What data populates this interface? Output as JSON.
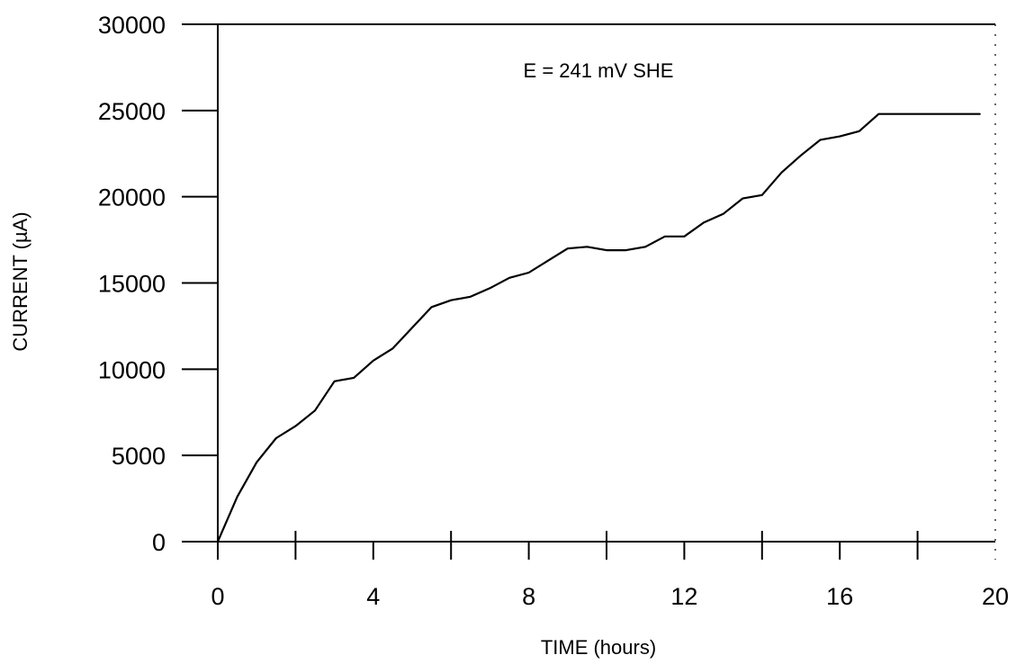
{
  "chart_data": {
    "type": "line",
    "title": "",
    "xlabel": "TIME (hours)",
    "ylabel": "CURRENT (µA)",
    "annotation": "E = 241 mV SHE",
    "xlim": [
      0,
      20
    ],
    "ylim": [
      0,
      30000
    ],
    "x_ticks": [
      0,
      4,
      8,
      12,
      16,
      20
    ],
    "x_tick_labels": [
      "0",
      "4",
      "8",
      "12",
      "16",
      "20"
    ],
    "x_minor_ticks": [
      2,
      6,
      10,
      14,
      18
    ],
    "y_ticks": [
      0,
      5000,
      10000,
      15000,
      20000,
      25000,
      30000
    ],
    "y_tick_labels": [
      "0",
      "5000",
      "10000",
      "15000",
      "20000",
      "25000",
      "30000"
    ],
    "grid": false,
    "line_color": "#000000",
    "series": [
      {
        "x": [
          0,
          0.5,
          1.0,
          1.5,
          2.0,
          2.5,
          3.0,
          3.5,
          4.0,
          4.5,
          5.0,
          5.5,
          6.0,
          6.5,
          7.0,
          7.5,
          8.0,
          8.5,
          9.0,
          9.5,
          10.0,
          10.5,
          11.0,
          11.5,
          12.0,
          12.5,
          13.0,
          13.5,
          14.0,
          14.5,
          15.0,
          15.5,
          16.0,
          16.5,
          17.0,
          17.5,
          18.0,
          18.5,
          19.0,
          19.6
        ],
        "y": [
          0,
          2600,
          4600,
          6000,
          6700,
          7600,
          9300,
          9500,
          10500,
          11200,
          12400,
          13600,
          14000,
          14200,
          14700,
          15300,
          15600,
          16300,
          17000,
          17100,
          16900,
          16900,
          17100,
          17700,
          17700,
          18500,
          19000,
          19900,
          20100,
          21400,
          22400,
          23300,
          23500,
          23800,
          24800,
          24800,
          24800,
          24800,
          24800,
          24800
        ]
      }
    ]
  }
}
